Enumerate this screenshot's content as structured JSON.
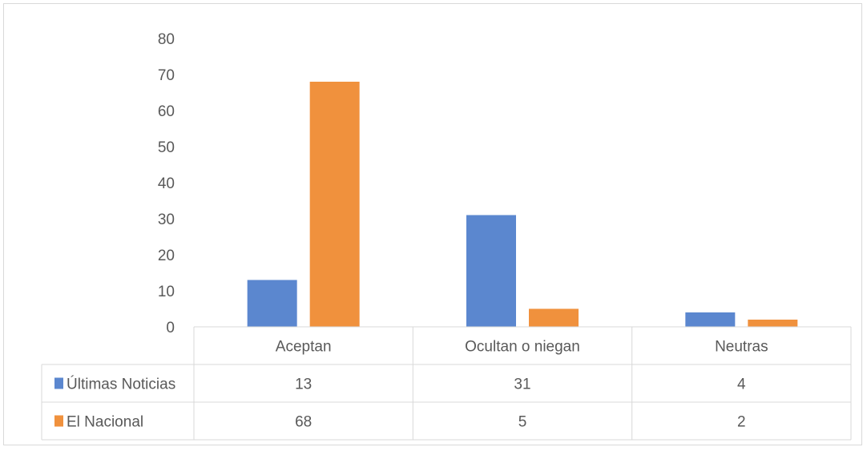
{
  "chart_data": {
    "type": "bar",
    "categories": [
      "Aceptan",
      "Ocultan o niegan",
      "Neutras"
    ],
    "series": [
      {
        "name": "Últimas Noticias",
        "values": [
          13,
          31,
          4
        ],
        "color": "#5b87cf"
      },
      {
        "name": "El Nacional",
        "values": [
          68,
          5,
          2
        ],
        "color": "#f0913d"
      }
    ],
    "ylim": [
      0,
      80
    ],
    "yticks": [
      0,
      10,
      20,
      30,
      40,
      50,
      60,
      70,
      80
    ],
    "grid": false,
    "legend": "data-table",
    "data_table": true
  }
}
